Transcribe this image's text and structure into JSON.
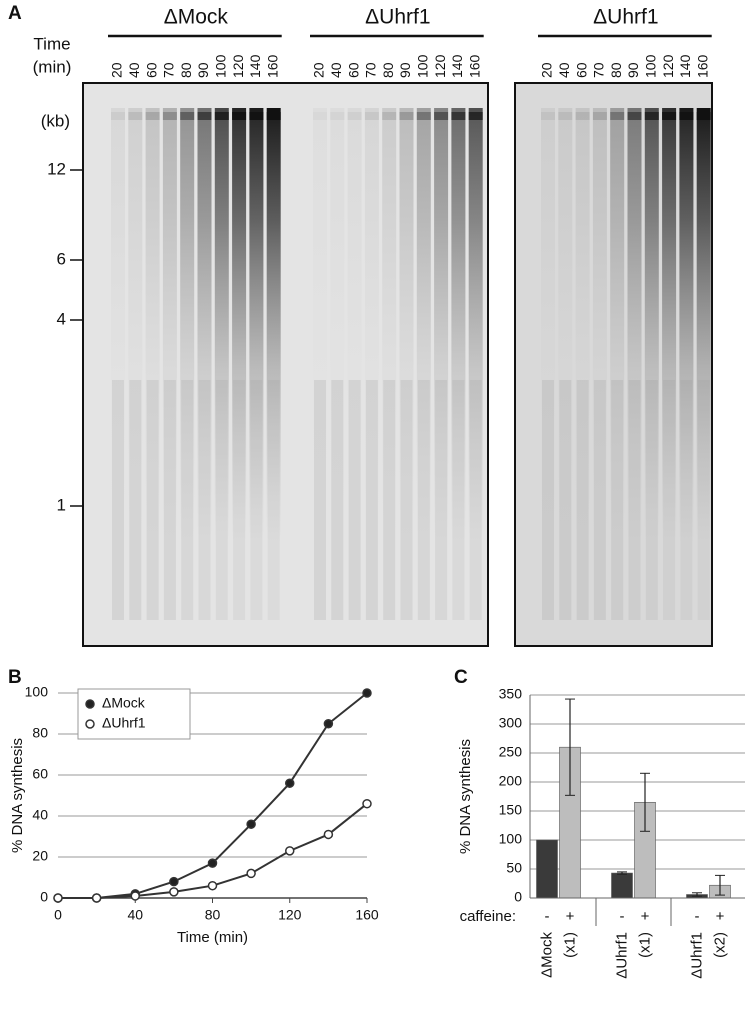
{
  "figure": {
    "panel_labels": [
      "A",
      "B",
      "C"
    ],
    "gel": {
      "time_label": "Time",
      "time_unit": "(min)",
      "groups": [
        "ΔMock",
        "ΔUhrf1",
        "ΔUhrf1"
      ],
      "lanes": [
        20,
        40,
        60,
        70,
        80,
        90,
        100,
        120,
        140,
        160
      ],
      "size_unit": "(kb)",
      "size_markers": [
        12,
        6,
        4,
        1
      ]
    }
  },
  "chart_data": [
    {
      "type": "line",
      "x_label": "Time (min)",
      "y_label": "% DNA synthesis",
      "x": [
        0,
        20,
        40,
        60,
        80,
        100,
        120,
        140,
        160
      ],
      "series": [
        {
          "name": "ΔMock",
          "color": "#333333",
          "marker_fill": "#222222",
          "values": [
            0,
            0,
            2,
            8,
            17,
            36,
            56,
            85,
            100
          ]
        },
        {
          "name": "ΔUhrf1",
          "color": "#333333",
          "marker_fill": "#ffffff",
          "values": [
            0,
            0,
            1,
            3,
            6,
            12,
            23,
            31,
            46
          ]
        }
      ],
      "xlim": [
        0,
        160
      ],
      "ylim": [
        0,
        100
      ],
      "xticks": [
        0,
        40,
        80,
        120,
        160
      ],
      "yticks": [
        0,
        20,
        40,
        60,
        80,
        100
      ],
      "grid": true,
      "legend": "upper left"
    },
    {
      "type": "bar",
      "y_label": "% DNA synthesis",
      "group_label": "caffeine:",
      "categories": [
        "ΔMock",
        "ΔUhrf1",
        "ΔUhrf1"
      ],
      "category_notes": [
        "(x1)",
        "(x1)",
        "(x2)"
      ],
      "series": [
        {
          "name": "-",
          "color": "#3a3a3a",
          "values": [
            100,
            43,
            6
          ],
          "errors": [
            0,
            2,
            3
          ]
        },
        {
          "name": "+",
          "color": "#bdbdbd",
          "values": [
            260,
            165,
            22
          ],
          "errors": [
            83,
            50,
            17
          ]
        }
      ],
      "ylim": [
        0,
        350
      ],
      "yticks": [
        0,
        50,
        100,
        150,
        200,
        250,
        300,
        350
      ],
      "grid": true
    }
  ]
}
